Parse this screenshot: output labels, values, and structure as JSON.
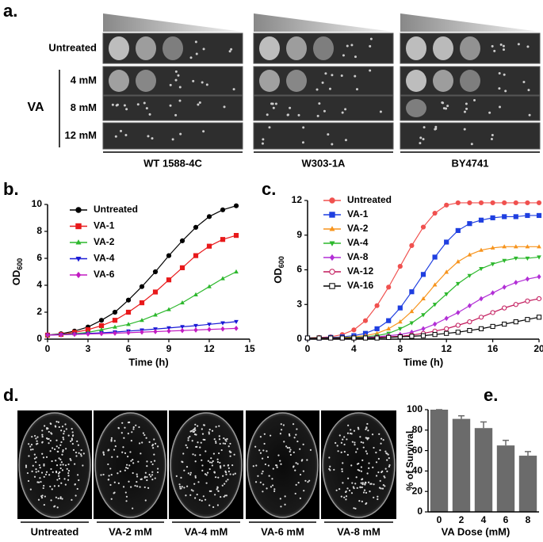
{
  "panel_letters": [
    "a.",
    "b.",
    "c.",
    "d.",
    "e."
  ],
  "panel_a": {
    "strains": [
      "WT 1588-4C",
      "W303-1A",
      "BY4741"
    ],
    "rows": [
      "Untreated",
      "4 mM",
      "8 mM",
      "12 mM"
    ],
    "treatment": "VA"
  },
  "panel_d": {
    "plates": [
      "Untreated",
      "VA-2 mM",
      "VA-4 mM",
      "VA-6 mM",
      "VA-8 mM"
    ]
  },
  "chart_data": [
    {
      "type": "line",
      "x_label": "Time (h)",
      "y_label": "OD",
      "y_label_subscript": "600",
      "x": [
        0,
        1,
        2,
        3,
        4,
        5,
        6,
        7,
        8,
        9,
        10,
        11,
        12,
        13,
        14
      ],
      "xlim": [
        0,
        15
      ],
      "xticks": [
        0,
        3,
        6,
        9,
        12,
        15
      ],
      "ylim": [
        0,
        10
      ],
      "yticks": [
        0,
        2,
        4,
        6,
        8,
        10
      ],
      "series": [
        {
          "name": "Untreated",
          "color": "#000000",
          "marker": "circle",
          "values": [
            0.3,
            0.4,
            0.6,
            0.9,
            1.4,
            2.0,
            2.9,
            3.9,
            5.0,
            6.2,
            7.3,
            8.3,
            9.1,
            9.6,
            9.9
          ]
        },
        {
          "name": "VA-1",
          "color": "#e8191b",
          "marker": "square",
          "values": [
            0.3,
            0.35,
            0.5,
            0.7,
            1.0,
            1.4,
            2.0,
            2.7,
            3.5,
            4.4,
            5.3,
            6.2,
            6.9,
            7.4,
            7.7
          ]
        },
        {
          "name": "VA-2",
          "color": "#2db82d",
          "marker": "triangle-up",
          "values": [
            0.3,
            0.35,
            0.4,
            0.5,
            0.7,
            0.9,
            1.1,
            1.4,
            1.8,
            2.2,
            2.7,
            3.3,
            3.9,
            4.5,
            5.0
          ]
        },
        {
          "name": "VA-4",
          "color": "#1a1ad6",
          "marker": "triangle-down",
          "values": [
            0.3,
            0.33,
            0.37,
            0.42,
            0.47,
            0.53,
            0.6,
            0.67,
            0.75,
            0.83,
            0.92,
            1.0,
            1.1,
            1.2,
            1.3
          ]
        },
        {
          "name": "VA-6",
          "color": "#c21bc2",
          "marker": "diamond",
          "values": [
            0.3,
            0.32,
            0.35,
            0.38,
            0.41,
            0.44,
            0.48,
            0.52,
            0.56,
            0.6,
            0.64,
            0.68,
            0.72,
            0.76,
            0.8
          ]
        }
      ]
    },
    {
      "type": "line",
      "x_label": "Time (h)",
      "y_label": "OD",
      "y_label_subscript": "600",
      "x": [
        0,
        1,
        2,
        3,
        4,
        5,
        6,
        7,
        8,
        9,
        10,
        11,
        12,
        13,
        14,
        15,
        16,
        17,
        18,
        19,
        20
      ],
      "xlim": [
        0,
        20
      ],
      "xticks": [
        0,
        4,
        8,
        12,
        16,
        20
      ],
      "ylim": [
        0,
        12
      ],
      "yticks": [
        0,
        3,
        6,
        9,
        12
      ],
      "series": [
        {
          "name": "Untreated",
          "color": "#f0514f",
          "marker": "circle",
          "values": [
            0.1,
            0.15,
            0.2,
            0.4,
            0.8,
            1.6,
            2.9,
            4.5,
            6.3,
            8.1,
            9.7,
            10.9,
            11.6,
            11.8,
            11.8,
            11.8,
            11.8,
            11.8,
            11.8,
            11.8,
            11.8
          ]
        },
        {
          "name": "VA-1",
          "color": "#1f3fe0",
          "marker": "square",
          "values": [
            0.1,
            0.1,
            0.15,
            0.2,
            0.3,
            0.5,
            0.9,
            1.6,
            2.7,
            4.1,
            5.6,
            7.1,
            8.4,
            9.4,
            10.0,
            10.3,
            10.5,
            10.6,
            10.6,
            10.7,
            10.7
          ]
        },
        {
          "name": "VA-2",
          "color": "#f7941d",
          "marker": "triangle-up",
          "values": [
            0.1,
            0.1,
            0.1,
            0.15,
            0.2,
            0.3,
            0.5,
            0.9,
            1.5,
            2.4,
            3.5,
            4.7,
            5.8,
            6.7,
            7.3,
            7.7,
            7.9,
            8.0,
            8.0,
            8.0,
            8.0
          ]
        },
        {
          "name": "VA-4",
          "color": "#2db82d",
          "marker": "triangle-down",
          "values": [
            0.1,
            0.1,
            0.1,
            0.1,
            0.15,
            0.2,
            0.3,
            0.5,
            0.9,
            1.4,
            2.1,
            3.0,
            3.9,
            4.8,
            5.5,
            6.1,
            6.5,
            6.8,
            7.0,
            7.0,
            7.1
          ]
        },
        {
          "name": "VA-8",
          "color": "#b22fd6",
          "marker": "diamond",
          "values": [
            0.1,
            0.1,
            0.1,
            0.1,
            0.1,
            0.15,
            0.2,
            0.3,
            0.4,
            0.6,
            0.9,
            1.3,
            1.8,
            2.3,
            2.9,
            3.5,
            4.0,
            4.5,
            4.9,
            5.2,
            5.4
          ]
        },
        {
          "name": "VA-12",
          "color": "#c2185b",
          "marker": "open-circle",
          "values": [
            0.1,
            0.1,
            0.1,
            0.1,
            0.1,
            0.1,
            0.15,
            0.2,
            0.25,
            0.35,
            0.5,
            0.7,
            0.9,
            1.2,
            1.5,
            1.9,
            2.3,
            2.7,
            3.0,
            3.3,
            3.5
          ]
        },
        {
          "name": "VA-16",
          "color": "#000000",
          "marker": "open-square",
          "values": [
            0.1,
            0.1,
            0.1,
            0.1,
            0.1,
            0.1,
            0.1,
            0.15,
            0.2,
            0.25,
            0.3,
            0.4,
            0.5,
            0.6,
            0.75,
            0.9,
            1.1,
            1.3,
            1.5,
            1.7,
            1.9
          ]
        }
      ]
    },
    {
      "type": "bar",
      "x_label": "VA Dose (mM)",
      "y_label": "% of Survival",
      "categories": [
        "0",
        "2",
        "4",
        "6",
        "8"
      ],
      "values": [
        100,
        91,
        82,
        65,
        55
      ],
      "errors": [
        0,
        3,
        6,
        5,
        4
      ],
      "color": "#6b6b6b",
      "ylim": [
        0,
        100
      ],
      "yticks": [
        0,
        20,
        40,
        60,
        80,
        100
      ]
    }
  ]
}
